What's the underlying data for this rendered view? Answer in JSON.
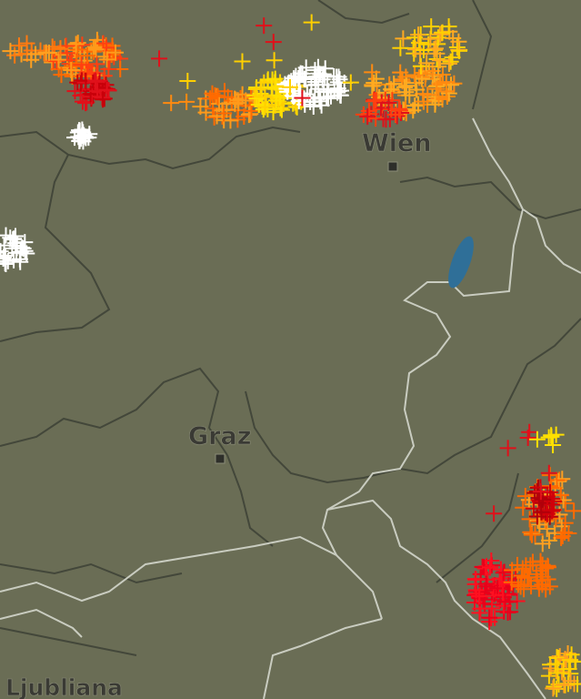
{
  "map": {
    "cities": [
      {
        "label": "Wien"
      },
      {
        "label": "Graz"
      },
      {
        "label": "Ljubliana"
      }
    ]
  }
}
